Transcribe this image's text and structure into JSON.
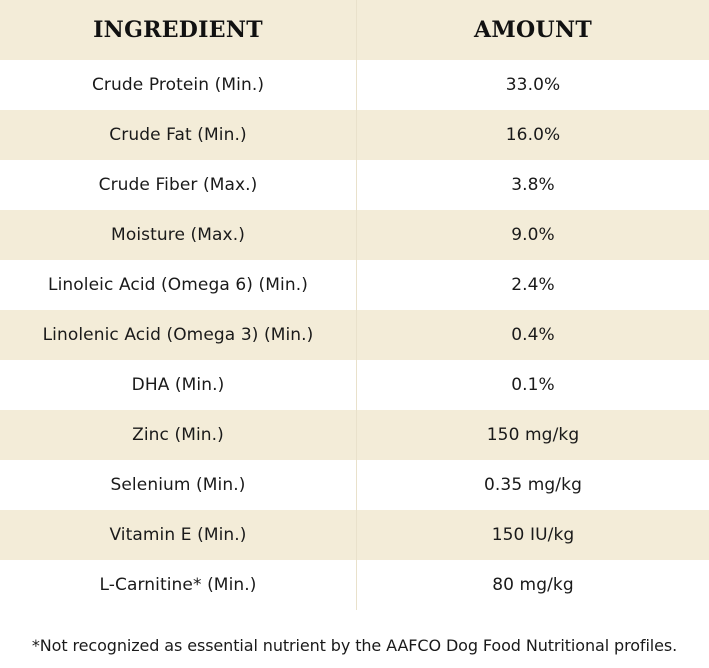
{
  "header": {
    "ingredient": "INGREDIENT",
    "amount": "AMOUNT"
  },
  "rows": [
    {
      "ingredient": "Crude Protein (Min.)",
      "amount": "33.0%"
    },
    {
      "ingredient": "Crude Fat (Min.)",
      "amount": "16.0%"
    },
    {
      "ingredient": "Crude Fiber (Max.)",
      "amount": "3.8%"
    },
    {
      "ingredient": "Moisture (Max.)",
      "amount": "9.0%"
    },
    {
      "ingredient": "Linoleic Acid (Omega 6) (Min.)",
      "amount": "2.4%"
    },
    {
      "ingredient": "Linolenic Acid (Omega 3) (Min.)",
      "amount": "0.4%"
    },
    {
      "ingredient": "DHA (Min.)",
      "amount": "0.1%"
    },
    {
      "ingredient": "Zinc (Min.)",
      "amount": "150 mg/kg"
    },
    {
      "ingredient": "Selenium (Min.)",
      "amount": "0.35 mg/kg"
    },
    {
      "ingredient": "Vitamin E (Min.)",
      "amount": "150 IU/kg"
    },
    {
      "ingredient": "L-Carnitine* (Min.)",
      "amount": "80 mg/kg"
    }
  ],
  "footnote": "*Not recognized as essential nutrient by the AAFCO Dog Food Nutritional profiles.",
  "colors": {
    "shaded_row": "#f3ecd8",
    "plain_row": "#ffffff"
  }
}
